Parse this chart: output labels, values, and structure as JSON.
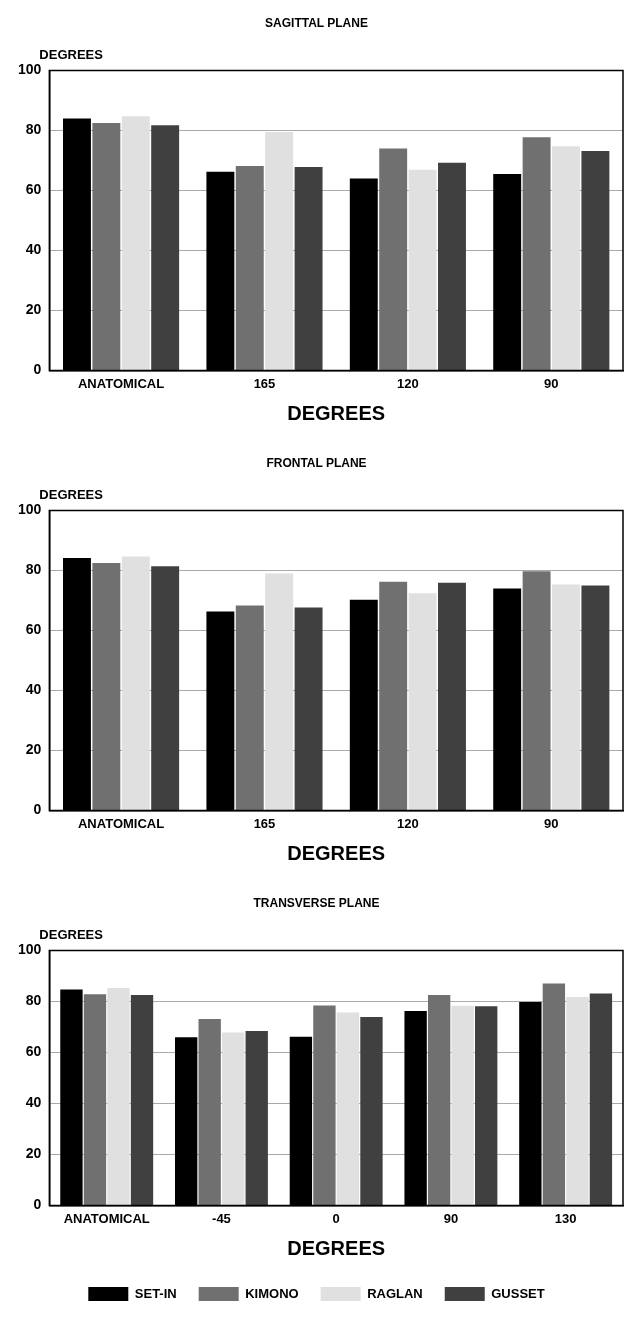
{
  "chart_data": [
    {
      "type": "bar",
      "title": "SAGITTAL PLANE",
      "xlabel": "DEGREES",
      "ylabel": "DEGREES",
      "categories": [
        "ANATOMICAL",
        "165",
        "120",
        "90"
      ],
      "ylim": [
        0,
        100
      ],
      "yticks": [
        0,
        20,
        40,
        60,
        80,
        100
      ],
      "grid": "y",
      "series": [
        {
          "color": "#000000",
          "values": [
            84,
            66.2,
            64,
            65.5
          ]
        },
        {
          "color": "#707070",
          "values": [
            82.5,
            68.1,
            74,
            77.7
          ]
        },
        {
          "color": "#e0e0e0",
          "values": [
            84.7,
            79.5,
            66.9,
            74.7
          ]
        },
        {
          "color": "#404040",
          "values": [
            81.7,
            67.8,
            69.2,
            73.1
          ]
        }
      ]
    },
    {
      "type": "bar",
      "title": "FRONTAL PLANE",
      "xlabel": "DEGREES",
      "ylabel": "DEGREES",
      "categories": [
        "ANATOMICAL",
        "165",
        "120",
        "90"
      ],
      "ylim": [
        0,
        100
      ],
      "yticks": [
        0,
        20,
        40,
        60,
        80,
        100
      ],
      "grid": "y",
      "series": [
        {
          "color": "#000000",
          "values": [
            84.1,
            66.3,
            70.2,
            74
          ]
        },
        {
          "color": "#707070",
          "values": [
            82.5,
            68.3,
            76.2,
            79.7
          ]
        },
        {
          "color": "#e0e0e0",
          "values": [
            84.6,
            79,
            72.4,
            75.3
          ]
        },
        {
          "color": "#404040",
          "values": [
            81.4,
            67.6,
            75.9,
            75
          ]
        }
      ]
    },
    {
      "type": "bar",
      "title": "TRANSVERSE PLANE",
      "xlabel": "DEGREES",
      "ylabel": "DEGREES",
      "categories": [
        "ANATOMICAL",
        "-45",
        "0",
        "90",
        "130"
      ],
      "ylim": [
        0,
        100
      ],
      "yticks": [
        0,
        20,
        40,
        60,
        80,
        100
      ],
      "grid": "y",
      "legend": "bottom",
      "series": [
        {
          "name": "SET-IN",
          "color": "#000000",
          "values": [
            84.7,
            65.9,
            66.1,
            76.2,
            79.8
          ]
        },
        {
          "name": "KIMONO",
          "color": "#707070",
          "values": [
            82.8,
            73.1,
            78.4,
            82.5,
            87
          ]
        },
        {
          "name": "RAGLAN",
          "color": "#e0e0e0",
          "values": [
            85.3,
            67.8,
            75.6,
            78.3,
            81.7
          ]
        },
        {
          "name": "GUSSET",
          "color": "#404040",
          "values": [
            82.5,
            68.4,
            73.9,
            78.1,
            83.1
          ]
        }
      ]
    }
  ]
}
